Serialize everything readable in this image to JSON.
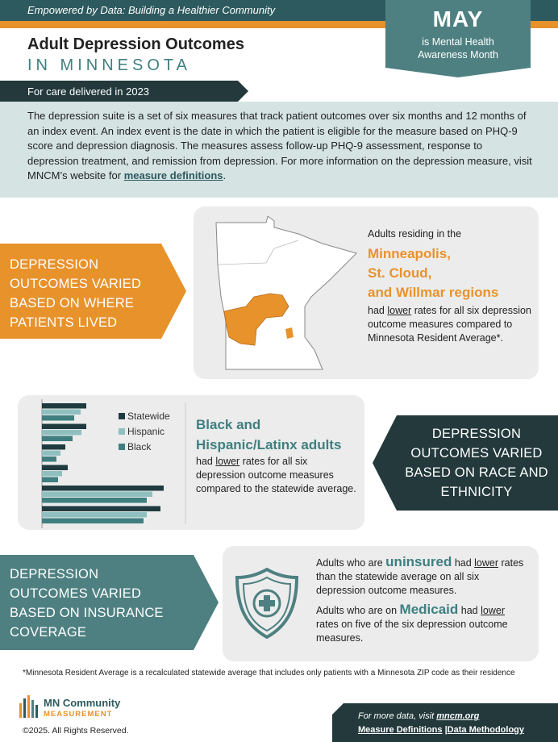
{
  "header": {
    "tagline": "Empowered by Data: Building a Healthier Community",
    "title": "Adult Depression Outcomes",
    "subtitle": "IN MINNESOTA",
    "period": "For care delivered in 2023",
    "banner": {
      "month": "MAY",
      "text": "is Mental Health Awareness Month"
    }
  },
  "intro": {
    "text": "The depression suite is a set of six measures that track patient outcomes over six months and 12 months of an index event. An index event is the date in which the patient is eligible for the measure based on PHQ-9 score and depression diagnosis. The measures assess follow-up PHQ-9 assessment, response to depression treatment, and remission from depression. For more information on the depression measure, visit MNCM’s website for ",
    "link": "measure definitions",
    "end": "."
  },
  "region": {
    "heading": "DEPRESSION OUTCOMES VARIED BASED ON WHERE PATIENTS LIVED",
    "lead": "Adults residing in the",
    "regions": [
      "Minneapolis,",
      "St. Cloud,",
      "and Willmar regions"
    ],
    "pre": "had ",
    "emph": "lower",
    "post": " rates for all six depression outcome measures compared to Minnesota Resident Average*."
  },
  "race": {
    "heading": "DEPRESSION OUTCOMES VARIED BASED ON RACE AND ETHNICITY",
    "highlight": "Black and Hispanic/Latinx adults",
    "pre": "had ",
    "emph": "lower",
    "post": " rates for all six depression outcome measures compared to the statewide average.",
    "chart_data": {
      "type": "bar",
      "orientation": "horizontal",
      "categories": [
        null,
        null,
        null,
        null,
        null,
        null
      ],
      "series": [
        {
          "name": "Statewide",
          "color": "#1f3b40",
          "values": [
            55,
            55,
            29,
            32,
            151,
            147
          ]
        },
        {
          "name": "Hispanic",
          "color": "#8fc0bf",
          "values": [
            48,
            49,
            23,
            25,
            137,
            130
          ]
        },
        {
          "name": "Black",
          "color": "#3f7f80",
          "values": [
            40,
            38,
            18,
            20,
            130,
            126
          ]
        }
      ]
    }
  },
  "insurance": {
    "heading": "DEPRESSION OUTCOMES VARIED BASED ON INSURANCE COVERAGE",
    "p1": {
      "pre": "Adults who are ",
      "highlight": "uninsured",
      "mid": " had ",
      "emph": "lower",
      "post": " rates than the statewide average on all six depression outcome measures."
    },
    "p2": {
      "pre": "Adults who are on ",
      "highlight": "Medicaid",
      "mid": " had ",
      "emph": "lower",
      "post": " rates on five of the six depression outcome measures."
    }
  },
  "footnote": "*Minnesota Resident Average is a recalculated statewide average that includes only patients with a Minnesota ZIP code as their residence",
  "footer": {
    "logo_top": "MN Community",
    "logo_bottom": "MEASUREMENT",
    "copyright": "©2025. All Rights Reserved.",
    "more_pre": "For more data, visit ",
    "more_link": "mncm.org",
    "link1": "Measure Definitions",
    "sep": " |",
    "link2": "Data Methodology"
  }
}
